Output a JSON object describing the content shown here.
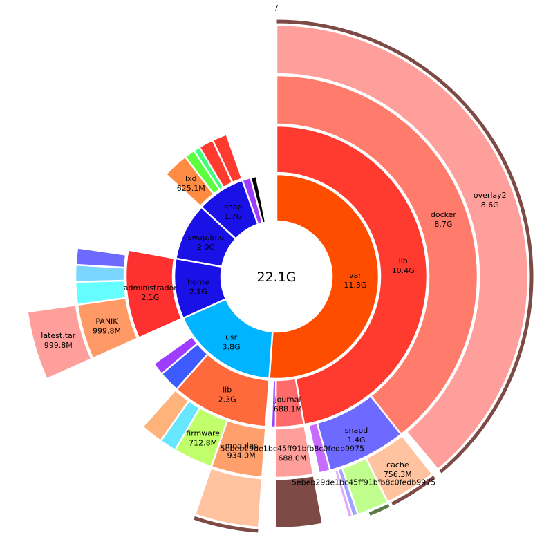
{
  "chart_data": {
    "type": "sunburst",
    "title": "/",
    "center_label": "22.1G",
    "colors": {
      "red1": "#ff4d00",
      "red2": "#ff3b30",
      "salmon": "#ff7b6b",
      "pink": "#ff9f9b",
      "brown": "#7d4a46",
      "blue": "#1a11e6",
      "cyan": "#00b4ff",
      "purple": "#9e3dff",
      "violet": "#6e6aff",
      "peach": "#ffc3a0",
      "orange": "#ff6a3d",
      "lime": "#c0ff8e"
    },
    "root": {
      "name": "/",
      "size_gb": 22.1,
      "children": [
        {
          "name": "var",
          "label": "11.3G",
          "size_gb": 11.3,
          "color": "#ff4d00",
          "children": [
            {
              "name": "lib",
              "label": "10.4G",
              "size_gb": 10.4,
              "color": "#ff3b30",
              "children": [
                {
                  "name": "docker",
                  "label": "8.7G",
                  "size_gb": 8.7,
                  "color": "#ff7b6b",
                  "children": [
                    {
                      "name": "overlay2",
                      "label": "8.6G",
                      "size_gb": 8.6,
                      "color": "#ff9f9b",
                      "children": [
                        {
                          "name": "",
                          "size_gb": 8.6,
                          "color": "#7d4a46"
                        }
                      ]
                    }
                  ]
                },
                {
                  "name": "snapd",
                  "label": "1.4G",
                  "size_gb": 1.4,
                  "color": "#6e6aff",
                  "children": [
                    {
                      "name": "cache",
                      "label": "756.3M",
                      "size_gb": 0.74,
                      "color": "#ffc3a0",
                      "children": [
                        {
                          "name": "",
                          "size_gb": 0.7,
                          "color": "#7d4a46"
                        }
                      ]
                    },
                    {
                      "name": "5ebeb29de1bc45ff91bfb8c0fedb9975",
                      "label": "",
                      "size_gb": 0.45,
                      "color": "#c0ff8e",
                      "children": [
                        {
                          "name": "",
                          "size_gb": 0.3,
                          "color": "#5c7a46"
                        }
                      ]
                    },
                    {
                      "name": "",
                      "size_gb": 0.08,
                      "color": "#9fa4ff"
                    },
                    {
                      "name": "",
                      "size_gb": 0.06,
                      "color": "#e6a6ff"
                    }
                  ]
                },
                {
                  "name": "",
                  "size_gb": 0.2,
                  "color": "#c86bff"
                }
              ]
            },
            {
              "name": "journal",
              "label": "688.1M",
              "size_gb": 0.67,
              "color": "#ff6b6b",
              "children": [
                {
                  "name": "5ebeb29de1bc45ff91bfb8c0fedb9975",
                  "label": "688.0M",
                  "size_gb": 0.67,
                  "color": "#ff9f9b",
                  "children": [
                    {
                      "name": "",
                      "size_gb": 0.67,
                      "color": "#7d4a46"
                    }
                  ]
                }
              ]
            },
            {
              "name": "",
              "size_gb": 0.1,
              "color": "#9e3dff"
            }
          ]
        },
        {
          "name": "usr",
          "label": "3.8G",
          "size_gb": 3.8,
          "color": "#00b4ff",
          "children": [
            {
              "name": "lib",
              "label": "2.3G",
              "size_gb": 2.3,
              "color": "#ff6a3d",
              "children": [
                {
                  "name": "modules",
                  "label": "934.0M",
                  "size_gb": 0.91,
                  "color": "#ff9f6b",
                  "children": [
                    {
                      "name": "",
                      "size_gb": 0.91,
                      "color": "#ffc3a0",
                      "children": [
                        {
                          "name": "",
                          "size_gb": 0.91,
                          "color": "#7d4a46"
                        }
                      ]
                    }
                  ]
                },
                {
                  "name": "firmware",
                  "label": "712.8M",
                  "size_gb": 0.7,
                  "color": "#c0ff6b"
                },
                {
                  "name": "",
                  "size_gb": 0.3,
                  "color": "#66e6ff"
                },
                {
                  "name": "",
                  "size_gb": 0.4,
                  "color": "#ffb27a"
                }
              ]
            },
            {
              "name": "",
              "size_gb": 0.5,
              "color": "#3d5bff"
            },
            {
              "name": "",
              "size_gb": 0.3,
              "color": "#9e3dff"
            }
          ]
        },
        {
          "name": "home",
          "label": "2.1G",
          "size_gb": 2.1,
          "color": "#1a11e6",
          "children": [
            {
              "name": "administrador",
              "label": "2.1G",
              "size_gb": 2.1,
              "color": "#ff3030",
              "children": [
                {
                  "name": "PANIK",
                  "label": "999.8M",
                  "size_gb": 0.98,
                  "color": "#ff9966",
                  "children": [
                    {
                      "name": "latest.tar",
                      "label": "999.8M",
                      "size_gb": 0.98,
                      "color": "#ff9f9b"
                    }
                  ]
                },
                {
                  "name": "",
                  "size_gb": 0.4,
                  "color": "#66ffff"
                },
                {
                  "name": "",
                  "size_gb": 0.3,
                  "color": "#7ad6ff"
                },
                {
                  "name": "",
                  "size_gb": 0.3,
                  "color": "#6e6aff"
                }
              ]
            }
          ]
        },
        {
          "name": "swap.img",
          "label": "2.0G",
          "size_gb": 2.0,
          "color": "#1a11e6"
        },
        {
          "name": "snap",
          "label": "1.7G",
          "size_gb": 1.7,
          "color": "#1a11e6",
          "children": [
            {
              "name": "lxd",
              "label": "625.1M",
              "size_gb": 0.61,
              "color": "#ff8c42"
            },
            {
              "name": "",
              "size_gb": 0.25,
              "color": "#5cff3d"
            },
            {
              "name": "",
              "size_gb": 0.15,
              "color": "#3dff7a"
            },
            {
              "name": "",
              "size_gb": 0.35,
              "color": "#ff3b30"
            },
            {
              "name": "",
              "size_gb": 0.35,
              "color": "#ff3b30"
            }
          ]
        },
        {
          "name": "",
          "size_gb": 0.3,
          "color": "#9e3dff"
        },
        {
          "name": "",
          "size_gb": 0.2,
          "color": "#000000"
        }
      ]
    }
  }
}
